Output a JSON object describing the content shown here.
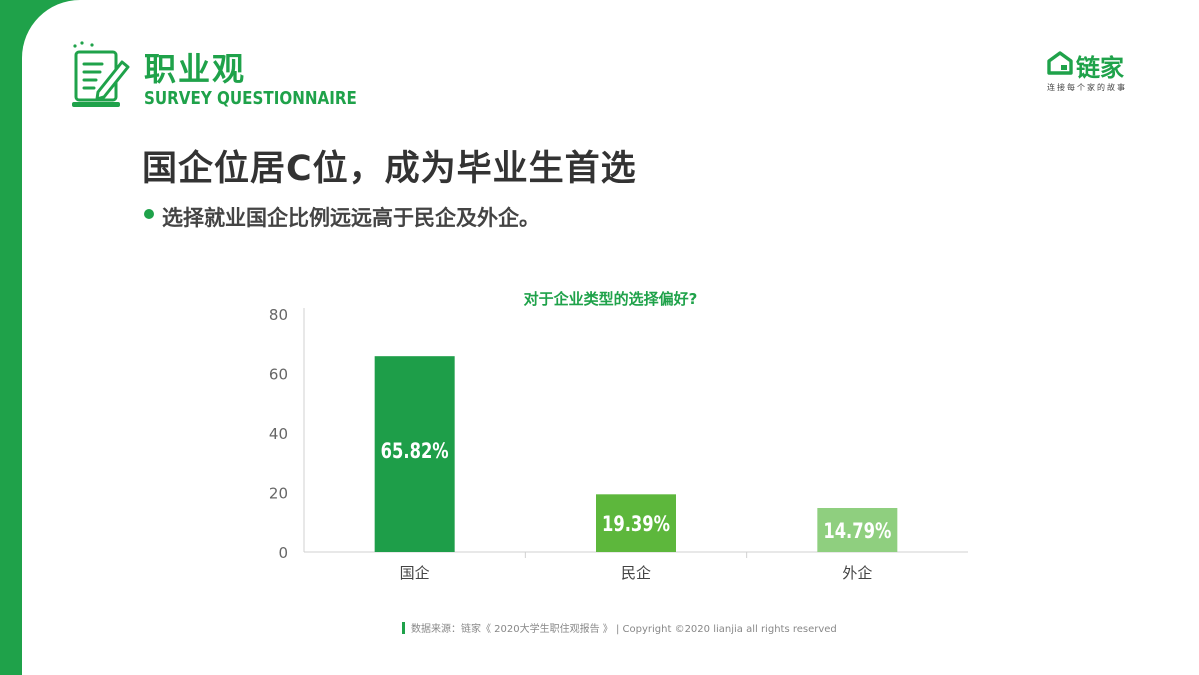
{
  "header": {
    "section_title": "职业观",
    "section_subtitle": "SURVEY QUESTIONNAIRE",
    "icon": "document-pen-icon"
  },
  "brand": {
    "logo_icon": "house-logo-icon",
    "name": "链家",
    "tagline": "连接每个家的故事"
  },
  "headline": "国企位居C位，成为毕业生首选",
  "bullet": "选择就业国企比例远远高于民企及外企。",
  "footer": "数据来源：链家《 2020大学生职住观报告 》 | Copyright ©2020 lianjia all rights reserved",
  "colors": {
    "brand_green": "#1fa24a",
    "bar_1": "#1e9e49",
    "bar_2": "#5db73c",
    "bar_3": "#8fcf7f"
  },
  "chart_data": {
    "type": "bar",
    "title": "对于企业类型的选择偏好?",
    "categories": [
      "国企",
      "民企",
      "外企"
    ],
    "values": [
      65.82,
      19.39,
      14.79
    ],
    "data_labels": [
      "65.82%",
      "19.39%",
      "14.79%"
    ],
    "ylim": [
      0,
      80
    ],
    "yticks": [
      0,
      20,
      40,
      60,
      80
    ],
    "xlabel": "",
    "ylabel": "",
    "grid": false,
    "legend": "none"
  }
}
